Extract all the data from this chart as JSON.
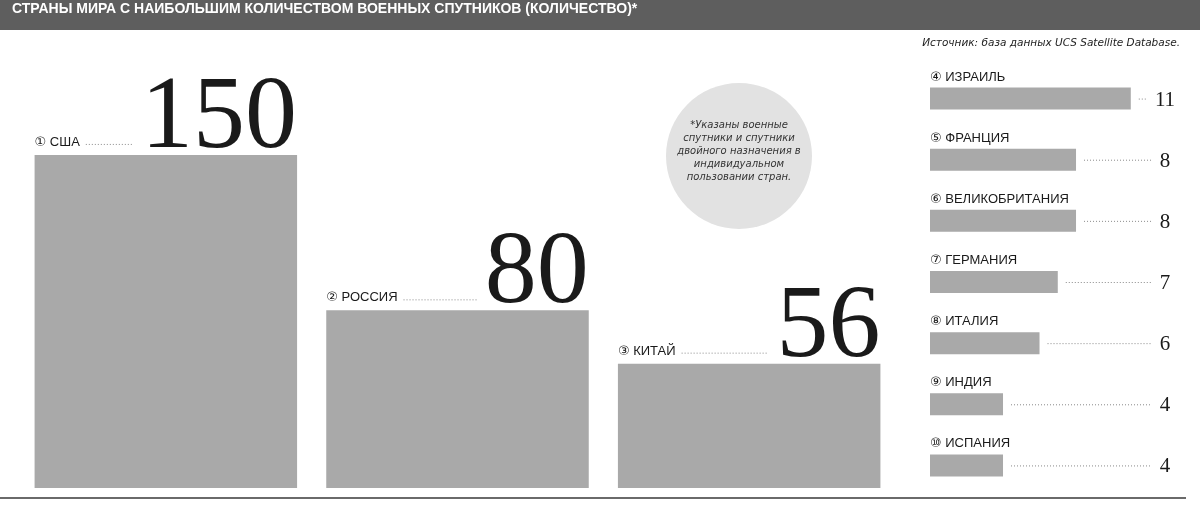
{
  "chart_data": [
    {
      "type": "bar",
      "title": "СТРАНЫ МИРА С НАИБОЛЬШИМ КОЛИЧЕСТВОМ ВОЕННЫХ СПУТНИКОВ (КОЛИЧЕСТВО)*",
      "annotations": [
        "Источник: база данных UCS Satellite Database.",
        "*Указаны военные спутники и спутники двойного назначения в индивидуальном пользовании стран."
      ],
      "categories": [
        "① США",
        "② РОССИЯ",
        "③ КИТАЙ"
      ],
      "values": [
        150,
        80,
        56
      ],
      "color": "#a9a9a9",
      "data_labels": true
    },
    {
      "type": "bar",
      "orientation": "horizontal",
      "categories": [
        "④ ИЗРАИЛЬ",
        "⑤ ФРАНЦИЯ",
        "⑥ ВЕЛИКОБРИТАНИЯ",
        "⑦ ГЕРМАНИЯ",
        "⑧ ИТАЛИЯ",
        "⑨ ИНДИЯ",
        "⑩ ИСПАНИЯ"
      ],
      "values": [
        11,
        8,
        8,
        7,
        6,
        4,
        4
      ],
      "color": "#a9a9a9",
      "data_labels": true
    }
  ]
}
